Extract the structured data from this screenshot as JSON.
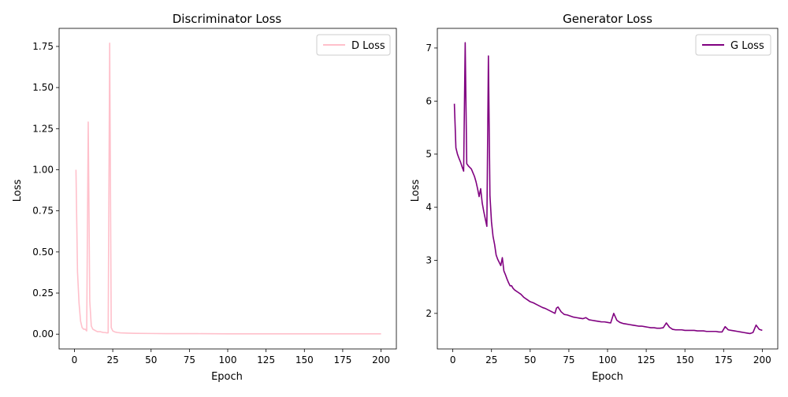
{
  "chart_data": [
    {
      "type": "line",
      "title": "Discriminator Loss",
      "xlabel": "Epoch",
      "ylabel": "Loss",
      "xlim": [
        -10,
        210
      ],
      "ylim": [
        -0.09,
        1.86
      ],
      "xticks": [
        0,
        25,
        50,
        75,
        100,
        125,
        150,
        175,
        200
      ],
      "xtick_labels": [
        "0",
        "25",
        "50",
        "75",
        "100",
        "125",
        "150",
        "175",
        "200"
      ],
      "yticks": [
        0.0,
        0.25,
        0.5,
        0.75,
        1.0,
        1.25,
        1.5,
        1.75
      ],
      "ytick_labels": [
        "0.00",
        "0.25",
        "0.50",
        "0.75",
        "1.00",
        "1.25",
        "1.50",
        "1.75"
      ],
      "grid": false,
      "legend_position": "top-right",
      "series": [
        {
          "name": "D Loss",
          "color": "#ffc0cb",
          "x": [
            1,
            2,
            3,
            4,
            5,
            6,
            7,
            8,
            9,
            10,
            11,
            12,
            13,
            14,
            15,
            16,
            17,
            18,
            19,
            20,
            21,
            22,
            23,
            24,
            25,
            26,
            27,
            28,
            30,
            35,
            40,
            50,
            60,
            80,
            100,
            125,
            150,
            175,
            200
          ],
          "y": [
            1.0,
            0.38,
            0.19,
            0.08,
            0.04,
            0.03,
            0.03,
            0.02,
            1.29,
            0.2,
            0.05,
            0.03,
            0.025,
            0.02,
            0.015,
            0.015,
            0.015,
            0.012,
            0.01,
            0.01,
            0.008,
            0.008,
            1.77,
            0.04,
            0.02,
            0.015,
            0.012,
            0.01,
            0.008,
            0.006,
            0.005,
            0.004,
            0.003,
            0.003,
            0.002,
            0.002,
            0.002,
            0.002,
            0.002
          ]
        }
      ]
    },
    {
      "type": "line",
      "title": "Generator Loss",
      "xlabel": "Epoch",
      "ylabel": "Loss",
      "xlim": [
        -10,
        210
      ],
      "ylim": [
        1.33,
        7.37
      ],
      "xticks": [
        0,
        25,
        50,
        75,
        100,
        125,
        150,
        175,
        200
      ],
      "xtick_labels": [
        "0",
        "25",
        "50",
        "75",
        "100",
        "125",
        "150",
        "175",
        "200"
      ],
      "yticks": [
        2,
        3,
        4,
        5,
        6,
        7
      ],
      "ytick_labels": [
        "2",
        "3",
        "4",
        "5",
        "6",
        "7"
      ],
      "grid": false,
      "legend_position": "top-right",
      "series": [
        {
          "name": "G Loss",
          "color": "#800080",
          "x": [
            1,
            2,
            3,
            4,
            5,
            6,
            7,
            8,
            9,
            10,
            11,
            12,
            13,
            14,
            15,
            16,
            17,
            18,
            19,
            20,
            21,
            22,
            23,
            24,
            25,
            26,
            27,
            28,
            29,
            30,
            31,
            32,
            33,
            34,
            35,
            36,
            37,
            38,
            39,
            40,
            42,
            44,
            46,
            48,
            50,
            52,
            54,
            56,
            58,
            60,
            62,
            64,
            66,
            67,
            68,
            70,
            72,
            74,
            76,
            78,
            80,
            82,
            84,
            86,
            88,
            90,
            92,
            94,
            96,
            98,
            100,
            102,
            104,
            106,
            108,
            110,
            112,
            114,
            116,
            118,
            120,
            122,
            124,
            126,
            128,
            130,
            132,
            134,
            136,
            138,
            140,
            142,
            144,
            146,
            148,
            150,
            152,
            154,
            156,
            158,
            160,
            162,
            164,
            166,
            168,
            170,
            172,
            174,
            176,
            178,
            180,
            182,
            184,
            186,
            188,
            190,
            192,
            194,
            196,
            198,
            200
          ],
          "y": [
            5.95,
            5.12,
            5.0,
            4.92,
            4.85,
            4.76,
            4.68,
            7.1,
            4.82,
            4.78,
            4.75,
            4.72,
            4.65,
            4.58,
            4.48,
            4.35,
            4.2,
            4.35,
            4.08,
            3.92,
            3.78,
            3.64,
            6.85,
            4.22,
            3.72,
            3.45,
            3.3,
            3.1,
            3.02,
            2.96,
            2.9,
            3.05,
            2.8,
            2.73,
            2.65,
            2.58,
            2.52,
            2.52,
            2.47,
            2.44,
            2.4,
            2.36,
            2.3,
            2.26,
            2.22,
            2.2,
            2.17,
            2.14,
            2.11,
            2.09,
            2.06,
            2.03,
            2.0,
            2.1,
            2.12,
            2.03,
            1.98,
            1.97,
            1.95,
            1.93,
            1.92,
            1.91,
            1.9,
            1.92,
            1.88,
            1.87,
            1.86,
            1.85,
            1.84,
            1.84,
            1.83,
            1.82,
            2.0,
            1.87,
            1.83,
            1.81,
            1.8,
            1.79,
            1.78,
            1.77,
            1.76,
            1.76,
            1.75,
            1.74,
            1.73,
            1.73,
            1.72,
            1.72,
            1.73,
            1.82,
            1.74,
            1.7,
            1.69,
            1.69,
            1.69,
            1.68,
            1.68,
            1.68,
            1.68,
            1.67,
            1.67,
            1.67,
            1.66,
            1.66,
            1.66,
            1.66,
            1.65,
            1.65,
            1.75,
            1.69,
            1.68,
            1.67,
            1.66,
            1.65,
            1.64,
            1.63,
            1.62,
            1.64,
            1.78,
            1.7,
            1.68
          ]
        }
      ]
    }
  ]
}
